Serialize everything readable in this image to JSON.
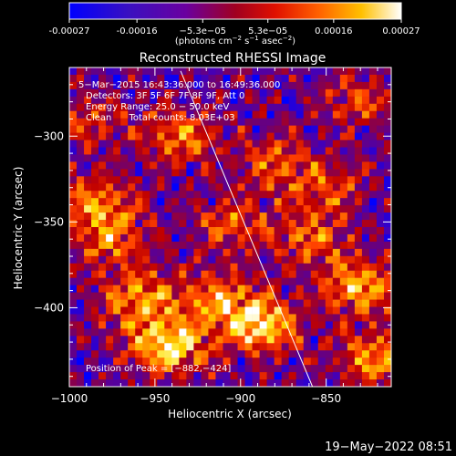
{
  "chart_data": {
    "type": "heatmap",
    "title": "Reconstructed RHESSI Image",
    "xlabel": "Heliocentric X (arcsec)",
    "ylabel": "Heliocentric Y (arcsec)",
    "xlim": [
      -1000,
      -812
    ],
    "ylim": [
      -446,
      -260
    ],
    "x_ticks": [
      -1000,
      -950,
      -900,
      -850
    ],
    "y_ticks": [
      -300,
      -350,
      -400
    ],
    "x_tick_labels": [
      "−1000",
      "−950",
      "−900",
      "−850"
    ],
    "y_tick_labels": [
      "−300",
      "−350",
      "−400"
    ],
    "colorbar": {
      "min": -0.00027,
      "max": 0.00027,
      "ticks": [
        -0.00027,
        -0.00016,
        -5.3e-05,
        5.3e-05,
        0.00016,
        0.00027
      ],
      "tick_labels": [
        "-0.00027",
        "-0.00016",
        "−5.3e−05",
        "5.3e−05",
        "0.00016",
        "0.00027"
      ],
      "units_prefix": "(photons cm",
      "units_exp1": "−2",
      "units_mid": " s",
      "units_exp2": "−1",
      "units_mid2": " asec",
      "units_exp3": "−2",
      "units_suffix": ")",
      "colors": [
        "#0000ff",
        "#4a00b0",
        "#7a0060",
        "#c00000",
        "#ff4000",
        "#ff9000",
        "#ffe000",
        "#ffffff"
      ]
    },
    "limb_line": {
      "x": [
        -935,
        -858
      ],
      "y": [
        -262,
        -446
      ]
    },
    "hot_spots": [
      {
        "x": -942,
        "y": -422,
        "intensity": 1.0
      },
      {
        "x": -888,
        "y": -410,
        "intensity": 0.95
      },
      {
        "x": -830,
        "y": -388,
        "intensity": 0.8
      },
      {
        "x": -985,
        "y": -338,
        "intensity": 0.65
      },
      {
        "x": -975,
        "y": -360,
        "intensity": 0.55
      },
      {
        "x": -935,
        "y": -300,
        "intensity": 0.6
      },
      {
        "x": -880,
        "y": -315,
        "intensity": 0.5
      },
      {
        "x": -850,
        "y": -330,
        "intensity": 0.45
      },
      {
        "x": -905,
        "y": -350,
        "intensity": 0.5
      },
      {
        "x": -960,
        "y": -395,
        "intensity": 0.7
      },
      {
        "x": -915,
        "y": -395,
        "intensity": 0.65
      },
      {
        "x": -830,
        "y": -280,
        "intensity": 0.45
      },
      {
        "x": -990,
        "y": -290,
        "intensity": 0.4
      },
      {
        "x": -860,
        "y": -360,
        "intensity": 0.55
      },
      {
        "x": -820,
        "y": -430,
        "intensity": 0.7
      }
    ],
    "annotations": [
      "5−Mar−2015 16:43:36.000 to 16:49:36.000",
      "Detectors: 3F 5F 6F 7F 8F 9F, Att 0",
      "Energy Range: 25.0 − 50.0 keV",
      "Clean      Total counts: 8.03E+03"
    ],
    "peak_label": "Position of Peak = [−882,−424]",
    "timestamp": "19−May−2022 08:51"
  }
}
